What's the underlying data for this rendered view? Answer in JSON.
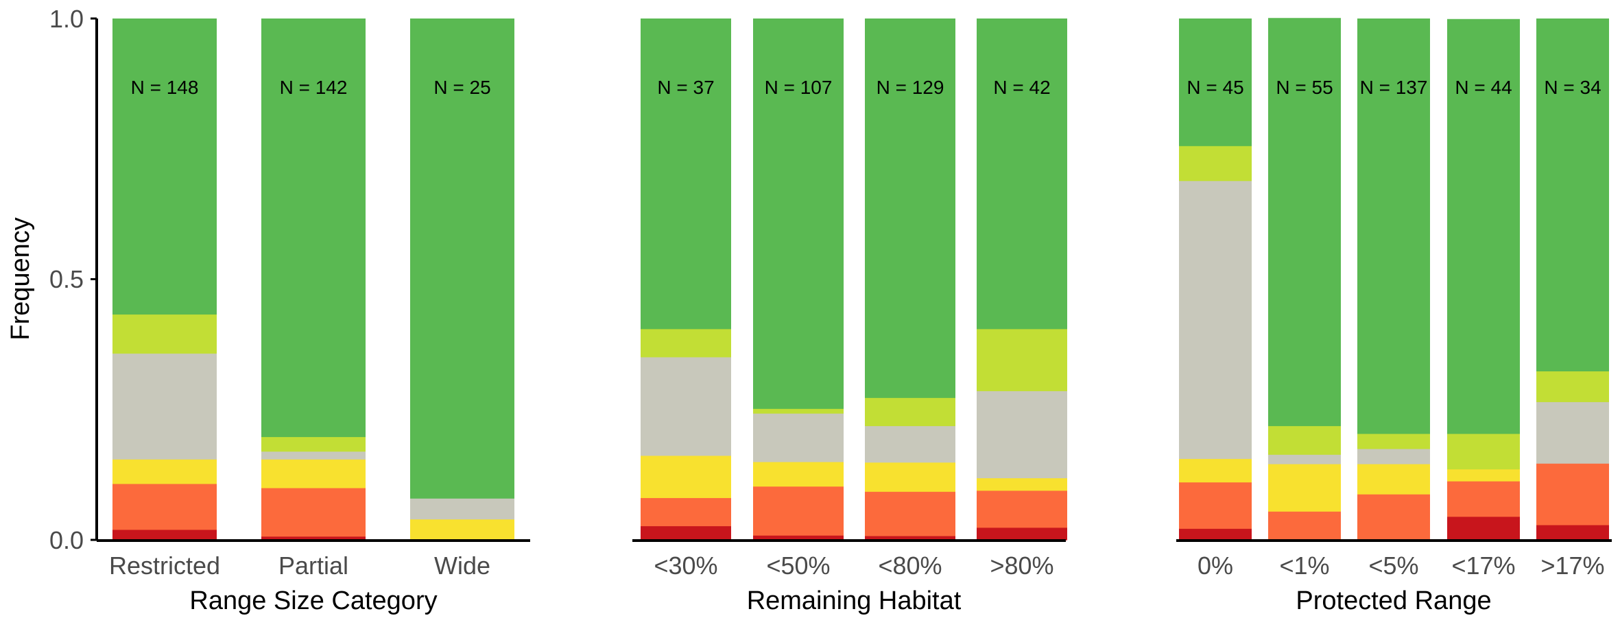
{
  "colors": {
    "critically_endangered": "#C8151C",
    "endangered": "#FC6A3C",
    "vulnerable": "#F8E12F",
    "data_deficient": "#C8C8BB",
    "near_threatened": "#C2DE35",
    "least_concern": "#5AB952"
  },
  "chart_data": [
    {
      "type": "bar",
      "stacked": true,
      "xlabel": "Range Size Category",
      "ylabel": "Frequency",
      "ylim": [
        0,
        1
      ],
      "yticks": [
        "0.0",
        "0.5",
        "1.0"
      ],
      "categories": [
        "Restricted",
        "Partial",
        "Wide"
      ],
      "n_labels": [
        "N = 148",
        "N = 142",
        "N = 25"
      ],
      "series": [
        {
          "color_key": "critically_endangered",
          "values": [
            0.02,
            0.007,
            0.0
          ]
        },
        {
          "color_key": "endangered",
          "values": [
            0.088,
            0.093,
            0.0
          ]
        },
        {
          "color_key": "vulnerable",
          "values": [
            0.047,
            0.055,
            0.04
          ]
        },
        {
          "color_key": "data_deficient",
          "values": [
            0.203,
            0.015,
            0.04
          ]
        },
        {
          "color_key": "near_threatened",
          "values": [
            0.075,
            0.028,
            0.0
          ]
        },
        {
          "color_key": "least_concern",
          "values": [
            0.567,
            0.802,
            0.92
          ]
        }
      ]
    },
    {
      "type": "bar",
      "stacked": true,
      "xlabel": "Remaining Habitat",
      "ylabel": "",
      "ylim": [
        0,
        1
      ],
      "categories": [
        "<30%",
        "<50%",
        "<80%",
        ">80%"
      ],
      "n_labels": [
        "N = 37",
        "N = 107",
        "N = 129",
        "N = 42"
      ],
      "series": [
        {
          "color_key": "critically_endangered",
          "values": [
            0.027,
            0.009,
            0.008,
            0.024
          ]
        },
        {
          "color_key": "endangered",
          "values": [
            0.054,
            0.094,
            0.085,
            0.071
          ]
        },
        {
          "color_key": "vulnerable",
          "values": [
            0.081,
            0.047,
            0.056,
            0.024
          ]
        },
        {
          "color_key": "data_deficient",
          "values": [
            0.189,
            0.093,
            0.07,
            0.167
          ]
        },
        {
          "color_key": "near_threatened",
          "values": [
            0.054,
            0.009,
            0.054,
            0.119
          ]
        },
        {
          "color_key": "least_concern",
          "values": [
            0.595,
            0.748,
            0.727,
            0.595
          ]
        }
      ]
    },
    {
      "type": "bar",
      "stacked": true,
      "xlabel": "Protected Range",
      "ylabel": "",
      "ylim": [
        0,
        1
      ],
      "categories": [
        "0%",
        "<1%",
        "<5%",
        "<17%",
        ">17%"
      ],
      "n_labels": [
        "N = 45",
        "N = 55",
        "N = 137",
        "N = 44",
        "N = 34"
      ],
      "series": [
        {
          "color_key": "critically_endangered",
          "values": [
            0.022,
            0.0,
            0.0,
            0.045,
            0.029
          ]
        },
        {
          "color_key": "endangered",
          "values": [
            0.089,
            0.055,
            0.088,
            0.068,
            0.118
          ]
        },
        {
          "color_key": "vulnerable",
          "values": [
            0.045,
            0.091,
            0.058,
            0.023,
            0.0
          ]
        },
        {
          "color_key": "data_deficient",
          "values": [
            0.533,
            0.018,
            0.029,
            0.0,
            0.118
          ]
        },
        {
          "color_key": "near_threatened",
          "values": [
            0.067,
            0.055,
            0.029,
            0.068,
            0.059
          ]
        },
        {
          "color_key": "least_concern",
          "values": [
            0.244,
            0.782,
            0.796,
            0.795,
            0.676
          ]
        }
      ]
    }
  ]
}
